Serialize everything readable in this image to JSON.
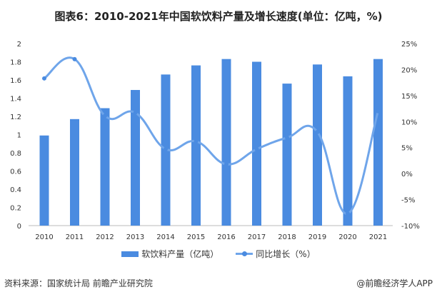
{
  "title": "图表6：2010-2021年中国软饮料产量及增长速度(单位：亿吨，%)",
  "chart_data": {
    "type": "bar+line",
    "title": "图表6：2010-2021年中国软饮料产量及增长速度(单位：亿吨，%)",
    "categories": [
      "2010",
      "2011",
      "2012",
      "2013",
      "2014",
      "2015",
      "2016",
      "2017",
      "2018",
      "2019",
      "2020",
      "2021"
    ],
    "series": [
      {
        "name": "软饮料产量（亿吨）",
        "type": "bar",
        "axis": "left",
        "color": "#4a8be0",
        "values": [
          0.99,
          1.17,
          1.29,
          1.49,
          1.66,
          1.76,
          1.83,
          1.8,
          1.56,
          1.77,
          1.64,
          1.83
        ]
      },
      {
        "name": "同比增长（%）",
        "type": "line",
        "axis": "right",
        "color": "#6fa5ea",
        "values": [
          18.3,
          22.0,
          11.1,
          11.7,
          4.7,
          6.2,
          1.8,
          4.7,
          6.9,
          8.0,
          -7.7,
          12.0
        ]
      }
    ],
    "left_axis": {
      "ylim": [
        0,
        2
      ],
      "ticks": [
        "0",
        "0.2",
        "0.4",
        "0.6",
        "0.8",
        "1",
        "1.2",
        "1.4",
        "1.6",
        "1.8",
        "2"
      ]
    },
    "right_axis": {
      "ylim": [
        -10,
        25
      ],
      "ticks": [
        "-10%",
        "-5%",
        "0%",
        "5%",
        "10%",
        "15%",
        "20%",
        "25%"
      ]
    },
    "grid": false,
    "legend": "bottom"
  },
  "source": "资料来源：国家统计局 前瞻产业研究院",
  "brand": "@前瞻经济学人APP"
}
